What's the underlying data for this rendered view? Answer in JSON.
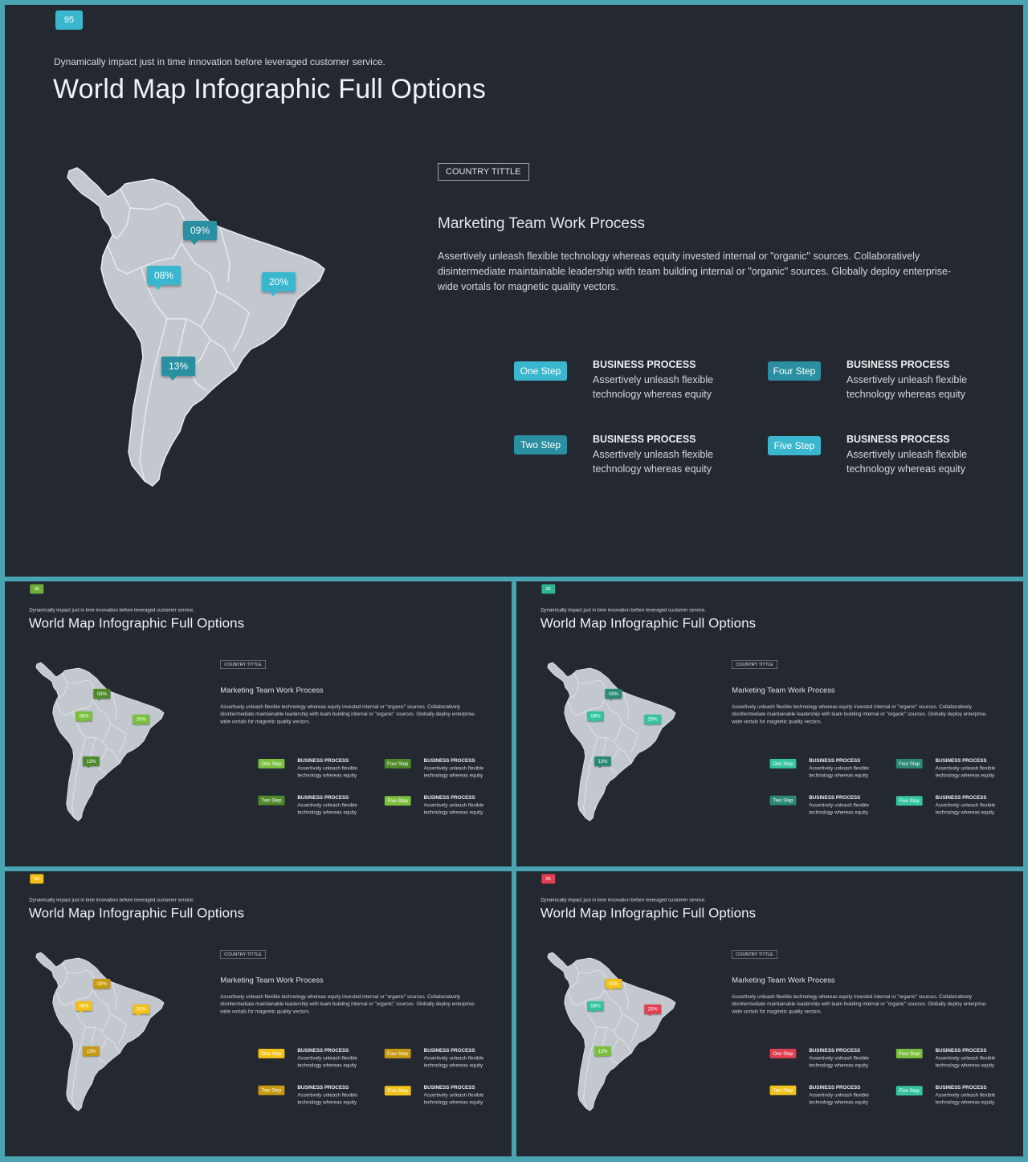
{
  "subtitle": "Dynamically impact just in time innovation  before leveraged customer service.",
  "title": "World Map Infographic Full Options",
  "country_tag": "COUNTRY TITTLE",
  "section_title": "Marketing  Team Work Process",
  "body": "Assertively unleash flexible technology whereas equity invested internal or \"organic\" sources. Collaboratively disintermediate maintainable leadership with team building internal or \"organic\" sources. Globally deploy enterprise-wide vortals for magnetic quality vectors.",
  "pins": {
    "p09": "09%",
    "p08": "08%",
    "p20": "20%",
    "p13": "13%"
  },
  "steps": {
    "one": "One Step",
    "two": "Two Step",
    "four": "Four Step",
    "five": "Five Step"
  },
  "bp_title": "BUSINESS PROCESS",
  "bp_body": "Assertively unleash flexible technology whereas equity",
  "slides": [
    {
      "page": "95",
      "colors": {
        "badge": "#3ab7cf",
        "p09": "#2a8fa0",
        "p08": "#3ab7cf",
        "p20": "#3ab7cf",
        "p13": "#2a8fa0",
        "one": "#3ab7cf",
        "two": "#2a8fa0",
        "four": "#2a8fa0",
        "five": "#3ab7cf"
      }
    },
    {
      "page": "95",
      "colors": {
        "badge": "#6fae3a",
        "p09": "#4f8a2a",
        "p08": "#7bbf3e",
        "p20": "#7bbf3e",
        "p13": "#4f8a2a",
        "one": "#7bbf3e",
        "two": "#4f8a2a",
        "four": "#4f8a2a",
        "five": "#7bbf3e"
      }
    },
    {
      "page": "95",
      "colors": {
        "badge": "#2fb58f",
        "p09": "#2a8a72",
        "p08": "#36c3a0",
        "p20": "#36c3a0",
        "p13": "#2a8a72",
        "one": "#36c3a0",
        "two": "#2a8a72",
        "four": "#2a8a72",
        "five": "#36c3a0"
      }
    },
    {
      "page": "95",
      "colors": {
        "badge": "#f2c21a",
        "p09": "#c79a10",
        "p08": "#f2c21a",
        "p20": "#f2c21a",
        "p13": "#c79a10",
        "one": "#f2c21a",
        "two": "#c79a10",
        "four": "#c79a10",
        "five": "#f2c21a"
      }
    },
    {
      "page": "95",
      "colors": {
        "badge": "#e0404f",
        "p09": "#f2c21a",
        "p08": "#36c3a0",
        "p20": "#e0404f",
        "p13": "#7bbf3e",
        "one": "#e0404f",
        "two": "#f2c21a",
        "four": "#7bbf3e",
        "five": "#36c3a0"
      }
    }
  ]
}
